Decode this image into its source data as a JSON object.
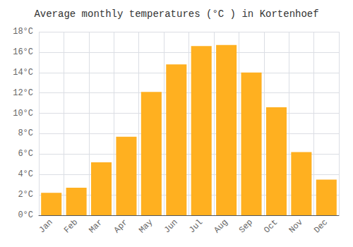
{
  "chart_data": {
    "type": "bar",
    "title": "Average monthly temperatures (°C ) in Kortenhoef",
    "categories": [
      "Jan",
      "Feb",
      "Mar",
      "Apr",
      "May",
      "Jun",
      "Jul",
      "Aug",
      "Sep",
      "Oct",
      "Nov",
      "Dec"
    ],
    "values": [
      2.2,
      2.7,
      5.2,
      7.7,
      12.1,
      14.8,
      16.6,
      16.7,
      14.0,
      10.6,
      6.2,
      3.5
    ],
    "color": "#FFB020",
    "ylim": [
      0,
      18
    ],
    "yticks": [
      {
        "value": 0,
        "label": "0°C"
      },
      {
        "value": 2,
        "label": "2°C"
      },
      {
        "value": 4,
        "label": "4°C"
      },
      {
        "value": 6,
        "label": "6°C"
      },
      {
        "value": 8,
        "label": "8°C"
      },
      {
        "value": 10,
        "label": "10°C"
      },
      {
        "value": 12,
        "label": "12°C"
      },
      {
        "value": 14,
        "label": "14°C"
      },
      {
        "value": 16,
        "label": "16°C"
      },
      {
        "value": 18,
        "label": "18°C"
      }
    ],
    "grid": true
  }
}
